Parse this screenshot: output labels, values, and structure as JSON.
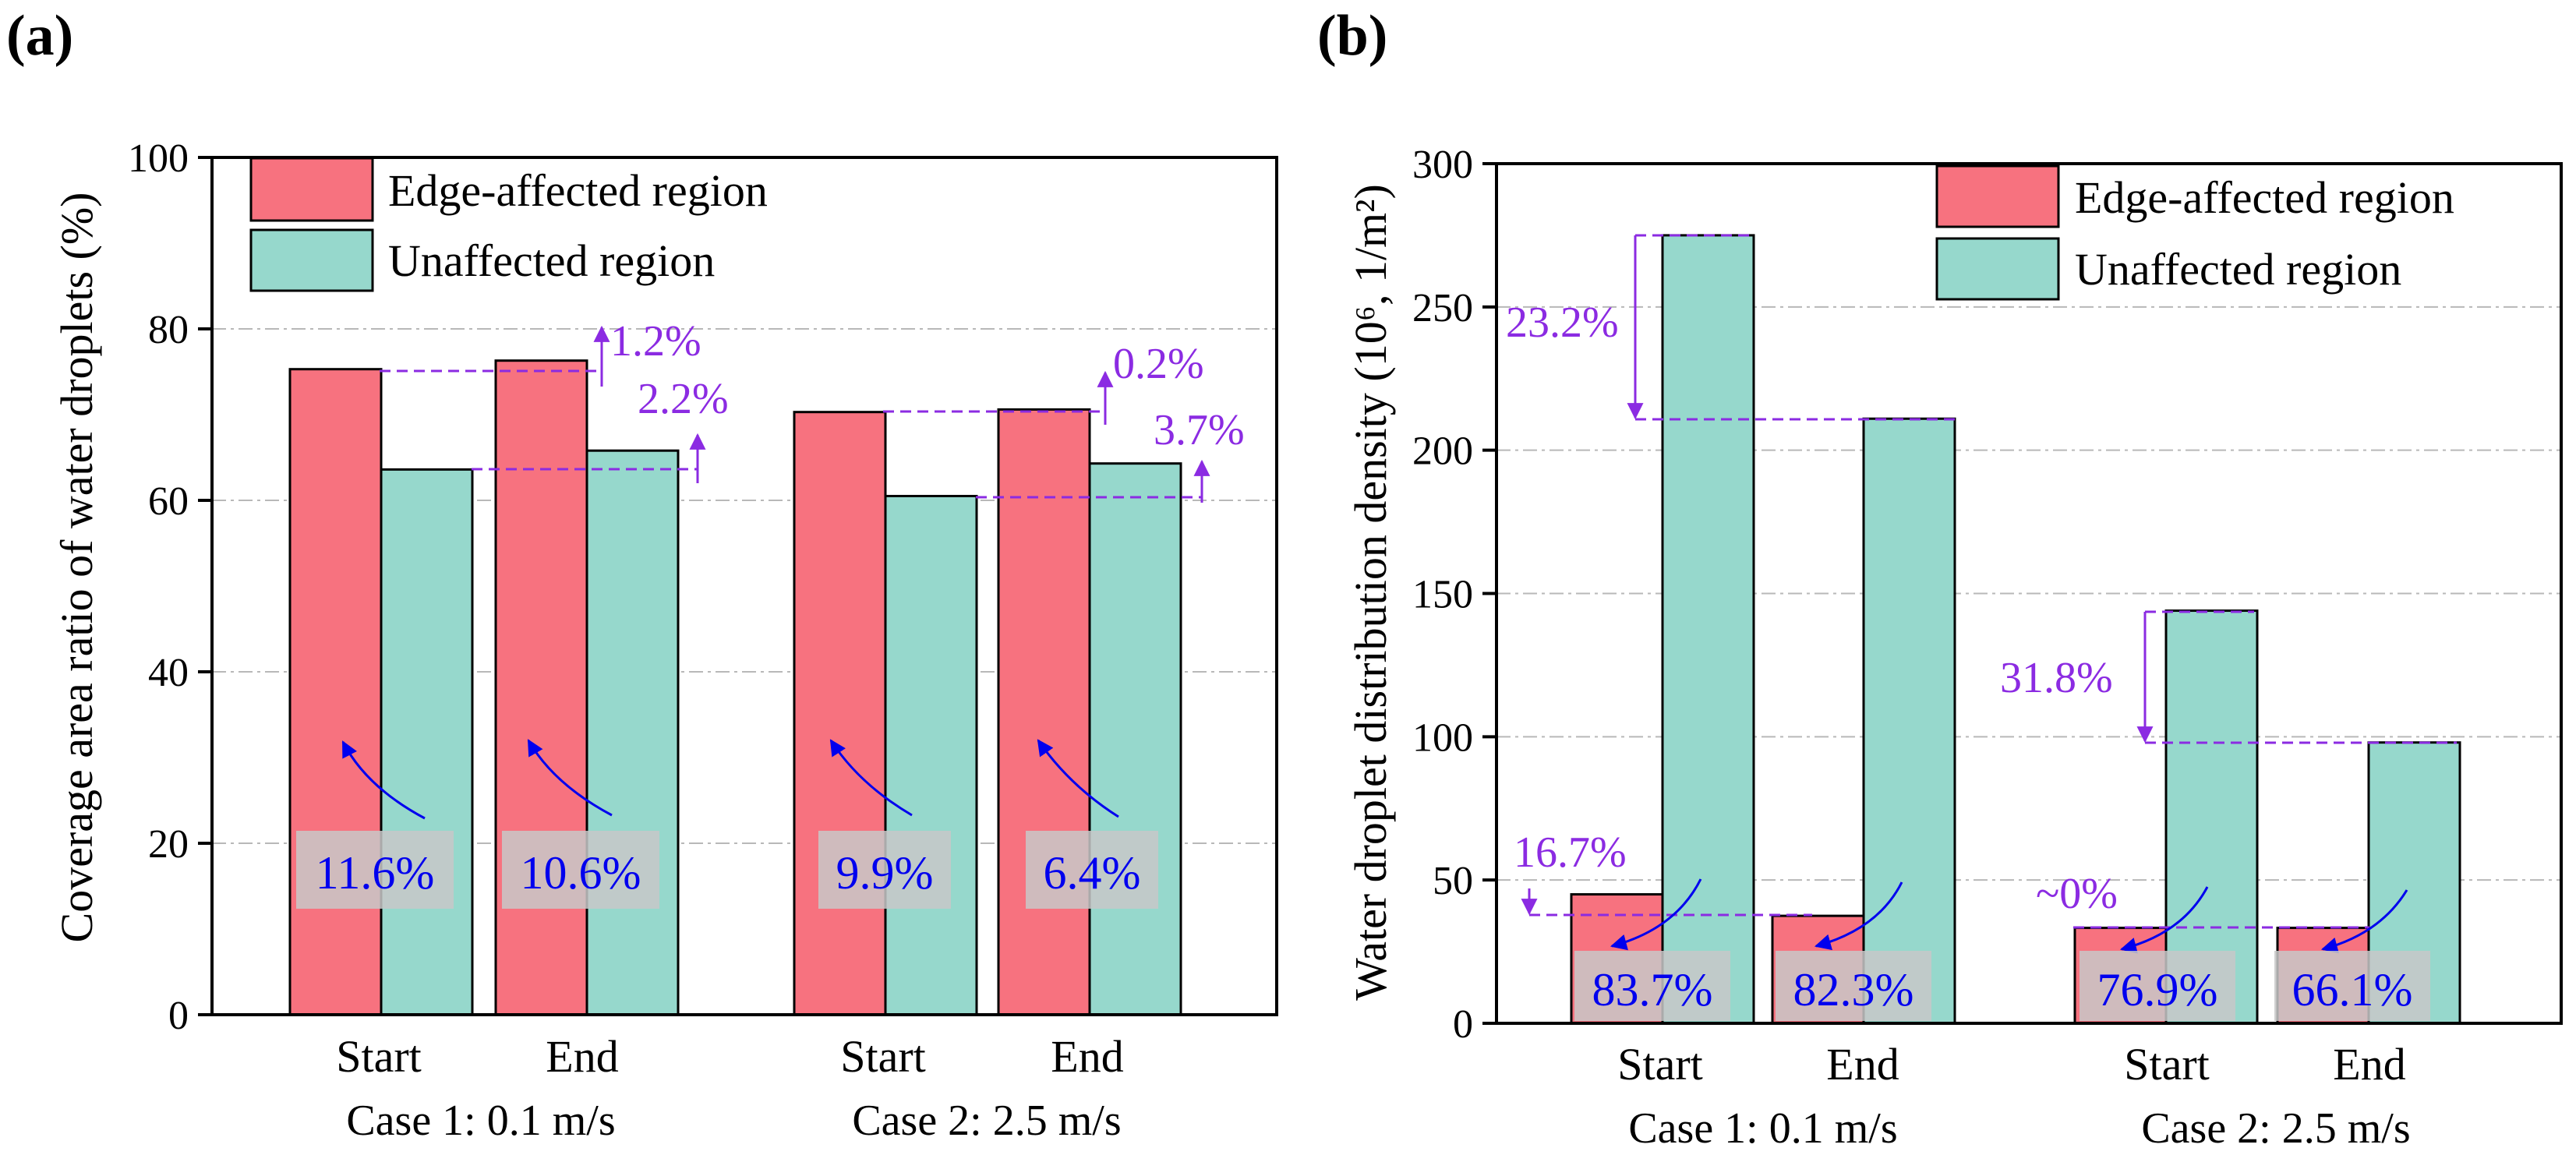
{
  "colors": {
    "edge": "#F7727F",
    "unaffected": "#96D8CC",
    "annotation_violet": "#8B2BE2",
    "annotation_blue": "#0000EE",
    "label_box": "#C8C8C8",
    "grid": "#B8B8B8"
  },
  "chart_data": [
    {
      "type": "bar",
      "panel_label": "(a)",
      "title": "",
      "ylabel": "Coverage area ratio of water droplets (%)",
      "ylim": [
        0,
        100
      ],
      "yticks": [
        "0",
        "20",
        "40",
        "60",
        "80",
        "100"
      ],
      "categories": [
        "Start",
        "End",
        "Start",
        "End"
      ],
      "groups": [
        "Case 1: 0.1 m/s",
        "Case 2: 2.5 m/s"
      ],
      "legend": {
        "position": "top-left",
        "items": [
          "Edge-affected region",
          "Unaffected region"
        ]
      },
      "series": [
        {
          "name": "Edge-affected region",
          "values": [
            75.3,
            76.3,
            70.3,
            70.6
          ]
        },
        {
          "name": "Unaffected region",
          "values": [
            63.6,
            65.8,
            60.5,
            64.3
          ]
        }
      ],
      "annotations": {
        "change_labels": [
          "1.2%",
          "2.2%",
          "0.2%",
          "3.7%"
        ],
        "difference_labels": [
          "11.6%",
          "10.6%",
          "9.9%",
          "6.4%"
        ]
      }
    },
    {
      "type": "bar",
      "panel_label": "(b)",
      "title": "",
      "ylabel": "Water droplet distribution density (10⁶, 1/m²)",
      "ylim": [
        0,
        300
      ],
      "yticks": [
        "0",
        "50",
        "100",
        "150",
        "200",
        "250",
        "300"
      ],
      "categories": [
        "Start",
        "End",
        "Start",
        "End"
      ],
      "groups": [
        "Case 1: 0.1 m/s",
        "Case 2: 2.5 m/s"
      ],
      "legend": {
        "position": "top-right",
        "items": [
          "Edge-affected region",
          "Unaffected region"
        ]
      },
      "series": [
        {
          "name": "Edge-affected region",
          "values": [
            45,
            37.5,
            33.3,
            33.3
          ]
        },
        {
          "name": "Unaffected region",
          "values": [
            275,
            211,
            144,
            98
          ]
        }
      ],
      "annotations": {
        "change_labels": [
          "23.2%",
          "31.8%",
          "16.7%",
          "~0%"
        ],
        "difference_labels": [
          "83.7%",
          "82.3%",
          "76.9%",
          "66.1%"
        ]
      }
    }
  ]
}
